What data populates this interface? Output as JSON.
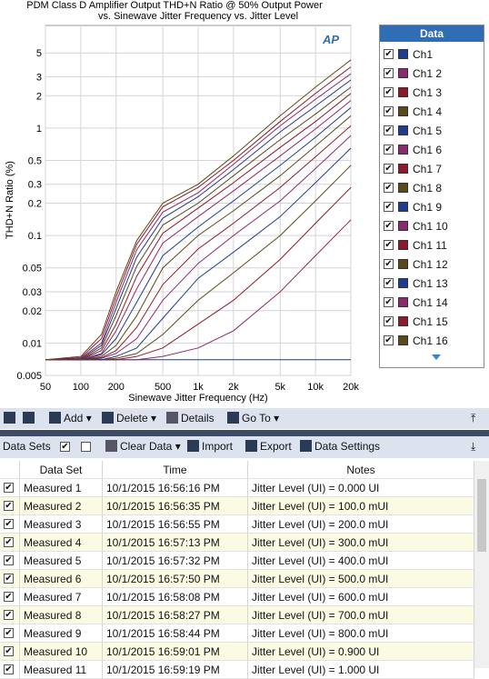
{
  "chart_data": {
    "type": "line",
    "title": "PDM Class D Amplifier Output THD+N Ratio @ 50% Output Power",
    "subtitle": "vs. Sinewave Jitter Frequency vs. Jitter Level",
    "logo": "AP",
    "x_label": "Sinewave Jitter Frequency (Hz)",
    "y_label": "THD+N Ratio (%)",
    "xscale": "log",
    "yscale": "log",
    "grid": true,
    "xlim": [
      50,
      20000
    ],
    "ylim": [
      0.005,
      9
    ],
    "xticks": [
      50,
      100,
      200,
      500,
      {
        "value": 1000,
        "label": "1k"
      },
      {
        "value": 2000,
        "label": "2k"
      },
      {
        "value": 5000,
        "label": "5k"
      },
      {
        "value": 10000,
        "label": "10k"
      },
      {
        "value": 20000,
        "label": "20k"
      }
    ],
    "yticks": [
      0.005,
      0.01,
      0.02,
      0.03,
      0.05,
      0.1,
      0.2,
      0.3,
      0.5,
      1,
      2,
      3,
      5
    ],
    "legend_title": "Data",
    "x": [
      50,
      100,
      150,
      200,
      300,
      500,
      1000,
      2000,
      5000,
      10000,
      20000
    ],
    "series": [
      {
        "name": "Ch1",
        "color": "#1f3d8f",
        "values": [
          0.007,
          0.007,
          0.007,
          0.007,
          0.007,
          0.007,
          0.007,
          0.007,
          0.007,
          0.007,
          0.007
        ]
      },
      {
        "name": "Ch1 2",
        "color": "#8b2a6e",
        "values": [
          0.007,
          0.007,
          0.007,
          0.007,
          0.007,
          0.0075,
          0.009,
          0.013,
          0.03,
          0.065,
          0.14
        ]
      },
      {
        "name": "Ch1 3",
        "color": "#8b1a2a",
        "values": [
          0.007,
          0.007,
          0.007,
          0.007,
          0.0075,
          0.009,
          0.015,
          0.025,
          0.06,
          0.13,
          0.28
        ]
      },
      {
        "name": "Ch1 4",
        "color": "#5a4a1a",
        "values": [
          0.007,
          0.007,
          0.007,
          0.0072,
          0.008,
          0.012,
          0.025,
          0.045,
          0.1,
          0.21,
          0.45
        ]
      },
      {
        "name": "Ch1 5",
        "color": "#1f3d8f",
        "values": [
          0.007,
          0.007,
          0.007,
          0.0075,
          0.009,
          0.017,
          0.04,
          0.07,
          0.15,
          0.31,
          0.65
        ]
      },
      {
        "name": "Ch1 6",
        "color": "#8b2a6e",
        "values": [
          0.007,
          0.007,
          0.0072,
          0.008,
          0.011,
          0.025,
          0.055,
          0.1,
          0.21,
          0.42,
          0.85
        ]
      },
      {
        "name": "Ch1 7",
        "color": "#8b1a2a",
        "values": [
          0.007,
          0.007,
          0.0073,
          0.0085,
          0.014,
          0.035,
          0.075,
          0.13,
          0.28,
          0.54,
          1.05
        ]
      },
      {
        "name": "Ch1 8",
        "color": "#5a4a1a",
        "values": [
          0.007,
          0.007,
          0.0075,
          0.0095,
          0.018,
          0.05,
          0.1,
          0.17,
          0.36,
          0.68,
          1.3
        ]
      },
      {
        "name": "Ch1 9",
        "color": "#1f3d8f",
        "values": [
          0.007,
          0.007,
          0.0078,
          0.011,
          0.024,
          0.065,
          0.12,
          0.21,
          0.45,
          0.82,
          1.55
        ]
      },
      {
        "name": "Ch1 10",
        "color": "#8b2a6e",
        "values": [
          0.007,
          0.007,
          0.008,
          0.013,
          0.032,
          0.085,
          0.15,
          0.26,
          0.55,
          0.98,
          1.8
        ]
      },
      {
        "name": "Ch1 11",
        "color": "#8b1a2a",
        "values": [
          0.007,
          0.007,
          0.0085,
          0.015,
          0.042,
          0.105,
          0.18,
          0.31,
          0.66,
          1.15,
          2.1
        ]
      },
      {
        "name": "Ch1 12",
        "color": "#5a4a1a",
        "values": [
          0.007,
          0.007,
          0.009,
          0.018,
          0.052,
          0.125,
          0.2,
          0.36,
          0.78,
          1.35,
          2.4
        ]
      },
      {
        "name": "Ch1 13",
        "color": "#1f3d8f",
        "values": [
          0.007,
          0.0071,
          0.0095,
          0.021,
          0.063,
          0.145,
          0.23,
          0.41,
          0.92,
          1.6,
          2.8
        ]
      },
      {
        "name": "Ch1 14",
        "color": "#8b2a6e",
        "values": [
          0.007,
          0.0072,
          0.01,
          0.024,
          0.074,
          0.165,
          0.25,
          0.46,
          1.05,
          1.85,
          3.2
        ]
      },
      {
        "name": "Ch1 15",
        "color": "#8b1a2a",
        "values": [
          0.007,
          0.0073,
          0.011,
          0.027,
          0.083,
          0.185,
          0.28,
          0.5,
          1.15,
          2.1,
          3.7
        ]
      },
      {
        "name": "Ch1 16",
        "color": "#5a4a1a",
        "values": [
          0.007,
          0.0075,
          0.012,
          0.03,
          0.09,
          0.2,
          0.3,
          0.55,
          1.3,
          2.4,
          4.3
        ]
      }
    ]
  },
  "toolbar": {
    "add": "Add",
    "delete": "Delete",
    "details": "Details",
    "goto": "Go To"
  },
  "datasets_bar": {
    "label": "Data Sets",
    "clear": "Clear Data",
    "import": "Import",
    "export": "Export",
    "settings": "Data Settings"
  },
  "table": {
    "headers": [
      "Data Set",
      "Time",
      "Notes"
    ],
    "rows": [
      [
        "Measured 1",
        "10/1/2015 16:56:16 PM",
        "Jitter Level (UI) = 0.000 UI"
      ],
      [
        "Measured 2",
        "10/1/2015 16:56:35 PM",
        "Jitter Level (UI) = 100.0 mUI"
      ],
      [
        "Measured 3",
        "10/1/2015 16:56:55 PM",
        "Jitter Level (UI) = 200.0 mUI"
      ],
      [
        "Measured 4",
        "10/1/2015 16:57:13 PM",
        "Jitter Level (UI) = 300.0 mUI"
      ],
      [
        "Measured 5",
        "10/1/2015 16:57:32 PM",
        "Jitter Level (UI) = 400.0 mUI"
      ],
      [
        "Measured 6",
        "10/1/2015 16:57:50 PM",
        "Jitter Level (UI) = 500.0 mUI"
      ],
      [
        "Measured 7",
        "10/1/2015 16:58:08 PM",
        "Jitter Level (UI) = 600.0 mUI"
      ],
      [
        "Measured 8",
        "10/1/2015 16:58:27 PM",
        "Jitter Level (UI) = 700.0 mUI"
      ],
      [
        "Measured 9",
        "10/1/2015 16:58:44 PM",
        "Jitter Level (UI) = 800.0 mUI"
      ],
      [
        "Measured 10",
        "10/1/2015 16:59:01 PM",
        "Jitter Level (UI) = 0.900 UI"
      ],
      [
        "Measured 11",
        "10/1/2015 16:59:19 PM",
        "Jitter Level (UI) = 1.000 UI"
      ]
    ]
  }
}
